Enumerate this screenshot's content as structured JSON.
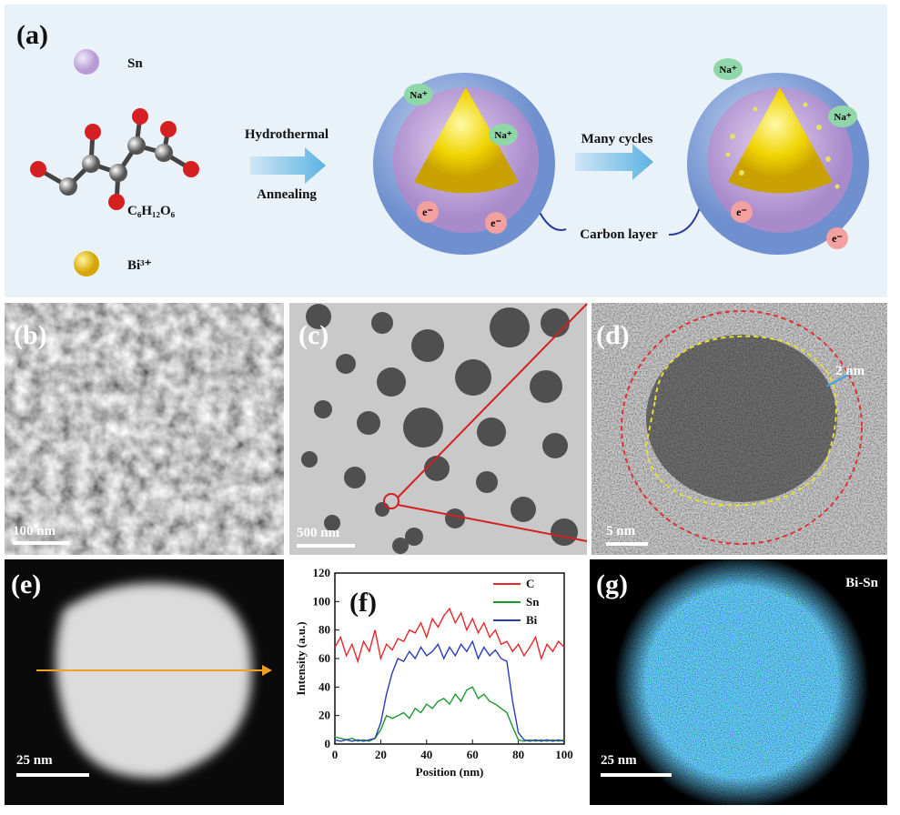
{
  "panels": {
    "a": {
      "label": "(a)",
      "sn": "Sn",
      "glucose": "C₆H₁₂O₆",
      "bi": "Bi³⁺",
      "step1_top": "Hydrothermal",
      "step1_bottom": "Annealing",
      "step2": "Many cycles",
      "carbon_layer": "Carbon layer",
      "ions": [
        "Na⁺",
        "Na⁺",
        "Na⁺",
        "Na⁺"
      ],
      "electrons": [
        "e⁻",
        "e⁻",
        "e⁻",
        "e⁻"
      ]
    },
    "b": {
      "label": "(b)",
      "scale": "100 nm"
    },
    "c": {
      "label": "(c)",
      "scale": "500 nm"
    },
    "d": {
      "label": "(d)",
      "shell": "2 nm",
      "scale": "5 nm"
    },
    "e": {
      "label": "(e)",
      "scale": "25 nm"
    },
    "g": {
      "label": "(g)",
      "map": "Bi-Sn",
      "scale": "25 nm"
    }
  },
  "chart_data": {
    "type": "line",
    "label": "(f)",
    "xlabel": "Position (nm)",
    "ylabel": "Intensity (a.u.)",
    "x": [
      0,
      2.5,
      5,
      7.5,
      10,
      12.5,
      15,
      17.5,
      20,
      22.5,
      25,
      27.5,
      30,
      32.5,
      35,
      37.5,
      40,
      42.5,
      45,
      47.5,
      50,
      52.5,
      55,
      57.5,
      60,
      62.5,
      65,
      67.5,
      70,
      72.5,
      75,
      77.5,
      80,
      82.5,
      85,
      87.5,
      90,
      92.5,
      95,
      97.5,
      100
    ],
    "series": [
      {
        "name": "C",
        "color": "#e8262b",
        "values": [
          68,
          75,
          62,
          70,
          58,
          72,
          65,
          80,
          60,
          70,
          66,
          74,
          72,
          80,
          78,
          85,
          75,
          88,
          82,
          90,
          95,
          85,
          92,
          80,
          88,
          78,
          85,
          75,
          80,
          70,
          72,
          65,
          70,
          62,
          68,
          75,
          60,
          70,
          65,
          72,
          68
        ]
      },
      {
        "name": "Sn",
        "color": "#1a9a2e",
        "values": [
          5,
          4,
          3,
          4,
          2,
          3,
          2,
          4,
          10,
          20,
          18,
          20,
          22,
          18,
          25,
          22,
          28,
          25,
          30,
          32,
          28,
          35,
          30,
          38,
          40,
          32,
          35,
          30,
          28,
          25,
          22,
          12,
          3,
          2,
          3,
          2,
          3,
          2,
          3,
          2,
          3
        ]
      },
      {
        "name": "Bi",
        "color": "#2b3cb8",
        "values": [
          3,
          2,
          3,
          2,
          3,
          2,
          3,
          4,
          15,
          35,
          50,
          60,
          58,
          65,
          60,
          68,
          62,
          65,
          70,
          60,
          68,
          62,
          70,
          65,
          72,
          60,
          68,
          62,
          66,
          60,
          58,
          30,
          8,
          3,
          2,
          3,
          2,
          3,
          2,
          3,
          2
        ]
      }
    ],
    "xlim": [
      0,
      100
    ],
    "xticks": [
      0,
      20,
      40,
      60,
      80,
      100
    ],
    "ylim": [
      0,
      120
    ],
    "yticks": [
      0,
      20,
      40,
      60,
      80,
      100,
      120
    ],
    "legend": "upper right"
  }
}
